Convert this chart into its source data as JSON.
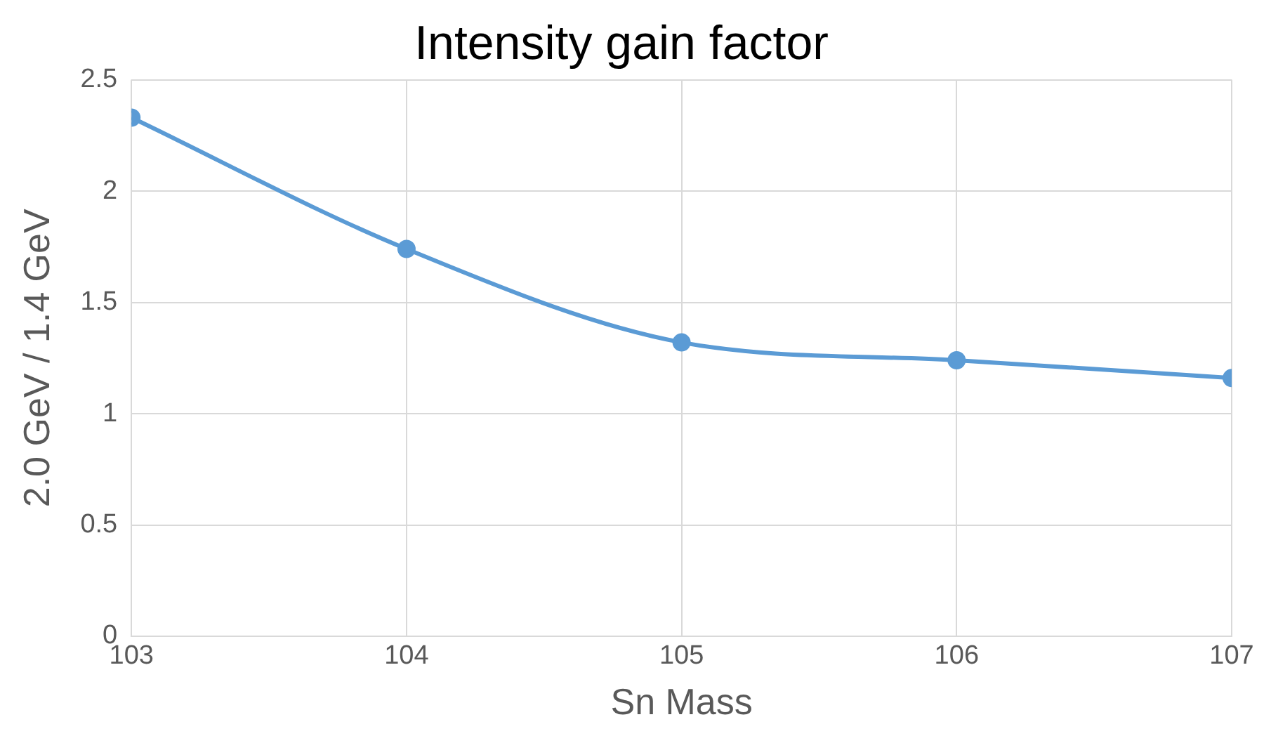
{
  "chart_data": {
    "type": "line",
    "title": "Intensity gain factor",
    "xlabel": "Sn Mass",
    "ylabel": "2.0 GeV / 1.4 GeV",
    "x": [
      103,
      104,
      105,
      106,
      107
    ],
    "series": [
      {
        "color": "#5b9bd5",
        "values": [
          2.33,
          1.74,
          1.32,
          1.24,
          1.16
        ]
      }
    ],
    "xlim": [
      103,
      107
    ],
    "xticks": [
      103,
      104,
      105,
      106,
      107
    ],
    "ylim": [
      0,
      2.5
    ],
    "yticks": [
      0,
      0.5,
      1,
      1.5,
      2,
      2.5
    ],
    "grid": true,
    "marker": "circle",
    "line_style": "solid",
    "legend": false
  }
}
